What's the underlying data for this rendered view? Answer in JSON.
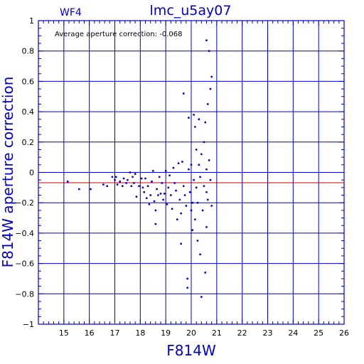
{
  "chart_data": {
    "type": "scatter",
    "title": "lmc_u5ay07",
    "corner_label": "WF4",
    "xlabel": "F814W",
    "ylabel": "F814W aperture correction",
    "annotation": "Average aperture correction: -0.068",
    "average_value": -0.068,
    "xlim": [
      14,
      26
    ],
    "ylim": [
      -1,
      1
    ],
    "x_ticks": [
      15,
      16,
      17,
      18,
      19,
      20,
      21,
      22,
      23,
      24,
      25,
      26
    ],
    "y_ticks": [
      -1,
      -0.8,
      -0.6,
      -0.4,
      -0.2,
      0,
      0.2,
      0.4,
      0.6,
      0.8,
      1
    ],
    "x_tick_labels": [
      "15",
      "16",
      "17",
      "18",
      "19",
      "20",
      "21",
      "22",
      "23",
      "24",
      "25",
      "26"
    ],
    "y_tick_labels": [
      "−1",
      "−0.8",
      "−0.6",
      "−0.4",
      "−0.2",
      "0",
      "0.2",
      "0.4",
      "0.6",
      "0.8",
      "1"
    ],
    "grid": true,
    "colors": {
      "axes": "#0000cc",
      "points": "#0000cc",
      "average_line": "#cc0000",
      "annotation_text": "#000000"
    },
    "points": [
      [
        15.15,
        -0.06
      ],
      [
        15.6,
        -0.11
      ],
      [
        16.05,
        -0.11
      ],
      [
        16.55,
        -0.08
      ],
      [
        16.7,
        -0.09
      ],
      [
        16.9,
        -0.03
      ],
      [
        17.0,
        -0.05
      ],
      [
        17.05,
        -0.03
      ],
      [
        17.1,
        -0.08
      ],
      [
        17.2,
        -0.06
      ],
      [
        17.3,
        -0.09
      ],
      [
        17.35,
        -0.04
      ],
      [
        17.45,
        -0.07
      ],
      [
        17.5,
        -0.05
      ],
      [
        17.6,
        0.0
      ],
      [
        17.65,
        -0.09
      ],
      [
        17.7,
        -0.03
      ],
      [
        17.75,
        -0.07
      ],
      [
        17.8,
        -0.01
      ],
      [
        17.85,
        -0.16
      ],
      [
        17.95,
        -0.09
      ],
      [
        18.05,
        -0.04
      ],
      [
        18.1,
        -0.1
      ],
      [
        18.15,
        -0.13
      ],
      [
        18.2,
        -0.04
      ],
      [
        18.25,
        -0.17
      ],
      [
        18.3,
        -0.09
      ],
      [
        18.35,
        -0.21
      ],
      [
        18.4,
        -0.15
      ],
      [
        18.45,
        -0.06
      ],
      [
        18.5,
        0.01
      ],
      [
        18.55,
        -0.19
      ],
      [
        18.6,
        -0.25
      ],
      [
        18.6,
        -0.34
      ],
      [
        18.65,
        -0.11
      ],
      [
        18.7,
        -0.15
      ],
      [
        18.75,
        -0.03
      ],
      [
        18.8,
        -0.14
      ],
      [
        18.85,
        -0.07
      ],
      [
        18.9,
        -0.18
      ],
      [
        18.95,
        -0.14
      ],
      [
        19.0,
        0.01
      ],
      [
        19.05,
        -0.21
      ],
      [
        19.1,
        -0.1
      ],
      [
        19.15,
        -0.02
      ],
      [
        19.2,
        -0.15
      ],
      [
        19.25,
        -0.24
      ],
      [
        19.3,
        0.03
      ],
      [
        19.35,
        -0.07
      ],
      [
        19.4,
        -0.12
      ],
      [
        19.45,
        -0.31
      ],
      [
        19.5,
        0.06
      ],
      [
        19.55,
        -0.18
      ],
      [
        19.6,
        -0.27
      ],
      [
        19.6,
        -0.47
      ],
      [
        19.65,
        0.07
      ],
      [
        19.7,
        -0.09
      ],
      [
        19.7,
        0.52
      ],
      [
        19.75,
        -0.15
      ],
      [
        19.8,
        -0.22
      ],
      [
        19.85,
        -0.7
      ],
      [
        19.85,
        -0.76
      ],
      [
        19.9,
        0.02
      ],
      [
        19.9,
        0.36
      ],
      [
        19.95,
        -0.13
      ],
      [
        20.0,
        -0.25
      ],
      [
        20.0,
        0.05
      ],
      [
        20.05,
        -0.38
      ],
      [
        20.05,
        -0.2
      ],
      [
        20.1,
        0.38
      ],
      [
        20.1,
        -0.05
      ],
      [
        20.15,
        0.3
      ],
      [
        20.15,
        -0.31
      ],
      [
        20.2,
        -0.1
      ],
      [
        20.2,
        0.15
      ],
      [
        20.25,
        -0.45
      ],
      [
        20.25,
        -0.2
      ],
      [
        20.3,
        0.05
      ],
      [
        20.3,
        0.35
      ],
      [
        20.35,
        -0.54
      ],
      [
        20.35,
        -0.03
      ],
      [
        20.4,
        0.12
      ],
      [
        20.4,
        -0.82
      ],
      [
        20.45,
        -0.25
      ],
      [
        20.5,
        0.2
      ],
      [
        20.5,
        -0.09
      ],
      [
        20.55,
        -0.66
      ],
      [
        20.55,
        0.33
      ],
      [
        20.6,
        0.02
      ],
      [
        20.6,
        -0.36
      ],
      [
        20.6,
        0.87
      ],
      [
        20.65,
        0.45
      ],
      [
        20.65,
        -0.18
      ],
      [
        20.7,
        0.8
      ],
      [
        20.7,
        0.08
      ],
      [
        20.75,
        -0.05
      ],
      [
        20.75,
        0.55
      ],
      [
        20.8,
        0.63
      ],
      [
        20.8,
        -0.22
      ],
      [
        20.6,
        -0.13
      ]
    ]
  }
}
